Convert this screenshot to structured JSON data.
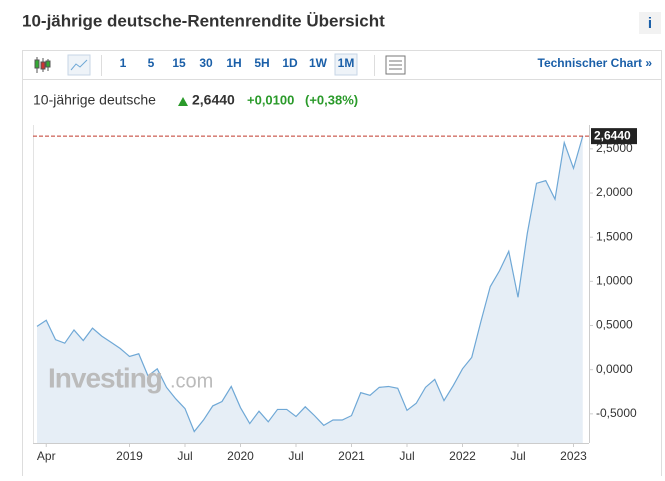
{
  "header": {
    "title": "10-jährige deutsche-Rentenrendite Übersicht",
    "info": "i"
  },
  "toolbar": {
    "buttons": [
      "1",
      "5",
      "15",
      "30",
      "1H",
      "5H",
      "1D",
      "1W",
      "1M"
    ],
    "active": "1M",
    "link": "Technischer Chart »"
  },
  "quote": {
    "name": "10-jährige deutsche",
    "last": "2,6440",
    "change": "+0,0100",
    "change_pct": "(+0,38%)"
  },
  "watermark": {
    "brand": "Investing",
    ".com": ".com"
  },
  "chart_data": {
    "type": "line",
    "categories": [
      null,
      "Apr",
      null,
      null,
      null,
      null,
      null,
      null,
      null,
      null,
      "2019",
      null,
      null,
      null,
      null,
      null,
      "Jul",
      null,
      null,
      null,
      null,
      null,
      "2020",
      null,
      null,
      null,
      null,
      null,
      "Jul",
      null,
      null,
      null,
      null,
      null,
      "2021",
      null,
      null,
      null,
      null,
      null,
      "Jul",
      null,
      null,
      null,
      null,
      null,
      "2022",
      null,
      null,
      null,
      null,
      null,
      "Jul",
      null,
      null,
      null,
      null,
      null,
      "2023",
      null
    ],
    "series": [
      {
        "name": "10-jährige deutsche",
        "color": "#6fa8d6",
        "values": [
          0.49,
          0.56,
          0.34,
          0.3,
          0.45,
          0.33,
          0.47,
          0.38,
          0.31,
          0.24,
          0.15,
          0.18,
          -0.07,
          0.01,
          -0.2,
          -0.33,
          -0.44,
          -0.7,
          -0.57,
          -0.41,
          -0.36,
          -0.19,
          -0.43,
          -0.61,
          -0.47,
          -0.59,
          -0.45,
          -0.45,
          -0.53,
          -0.42,
          -0.52,
          -0.63,
          -0.57,
          -0.57,
          -0.52,
          -0.26,
          -0.29,
          -0.2,
          -0.19,
          -0.21,
          -0.46,
          -0.38,
          -0.2,
          -0.11,
          -0.35,
          -0.18,
          0.01,
          0.14,
          0.55,
          0.94,
          1.12,
          1.34,
          0.82,
          1.54,
          2.11,
          2.14,
          1.93,
          2.57,
          2.28,
          2.644
        ]
      }
    ],
    "ylim": [
      -0.83,
      2.77
    ],
    "yticks": [
      {
        "value": -0.5,
        "label": "-0,5000"
      },
      {
        "value": 0,
        "label": "0,0000"
      },
      {
        "value": 0.5,
        "label": "0,5000"
      },
      {
        "value": 1,
        "label": "1,0000"
      },
      {
        "value": 1.5,
        "label": "1,5000"
      },
      {
        "value": 2,
        "label": "2,0000"
      },
      {
        "value": 2.5,
        "label": "2,5000"
      }
    ],
    "area_color": "#e6eef6",
    "last_line_color": "#c0392b"
  }
}
